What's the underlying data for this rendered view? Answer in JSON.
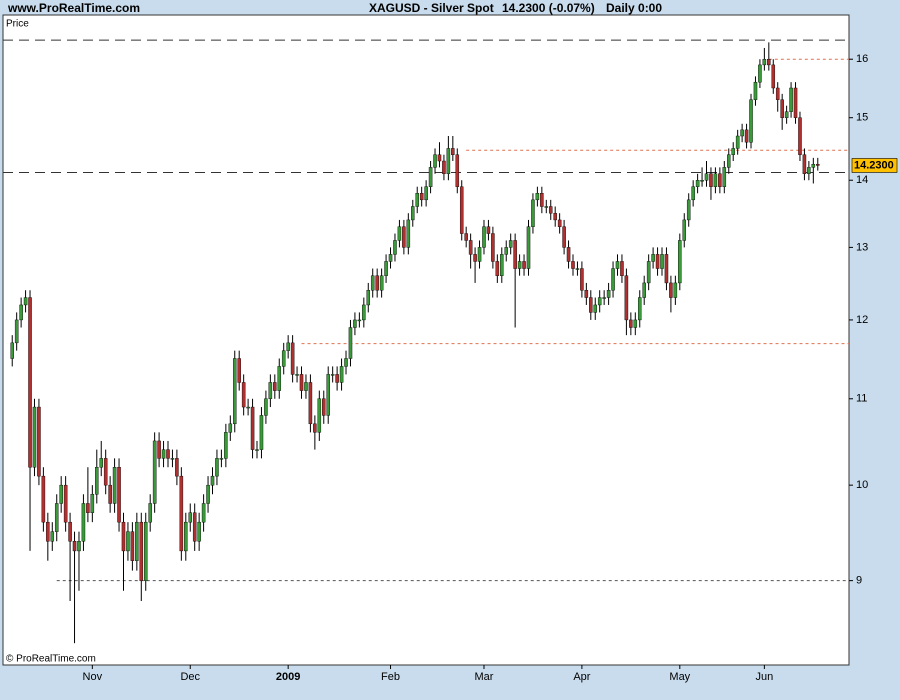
{
  "header": {
    "site": "www.ProRealTime.com",
    "instrument": "XAGUSD - Silver Spot",
    "quote": "14.2300 (-0.07%)",
    "period": "Daily 0:00"
  },
  "footer": {
    "copyright": "© ProRealTime.com"
  },
  "chart_data": {
    "type": "candlestick",
    "y_label": "Price",
    "log_scale": true,
    "up_color": "#3a9a3a",
    "down_color": "#b03030",
    "wick_color": "#000000",
    "xlim": [
      -0.5,
      181.5
    ],
    "xticks": [
      {
        "value": 18,
        "label": "Nov"
      },
      {
        "value": 40,
        "label": "Dec"
      },
      {
        "value": 62,
        "label": "2009"
      },
      {
        "value": 85,
        "label": "Feb"
      },
      {
        "value": 106,
        "label": "Mar"
      },
      {
        "value": 128,
        "label": "Apr"
      },
      {
        "value": 150,
        "label": "May"
      },
      {
        "value": 169,
        "label": "Jun"
      }
    ],
    "ylim": [
      8.2,
      16.8
    ],
    "yticks": [
      9,
      10,
      11,
      12,
      13,
      14,
      15,
      16
    ],
    "last_price": {
      "value": 14.23,
      "label": "14.2300",
      "color": "#ffc000"
    },
    "hlines": [
      {
        "value": 16.34,
        "color": "#333333",
        "dash": "10,6"
      },
      {
        "value": 14.12,
        "color": "#333333",
        "dash": "10,6"
      },
      {
        "value": 16.0,
        "color": "#e07050",
        "dash": "3,3",
        "start": 170
      },
      {
        "value": 14.47,
        "color": "#e07050",
        "dash": "3,3",
        "start": 102
      },
      {
        "value": 11.69,
        "color": "#e07050",
        "dash": "3,3",
        "start": 65
      },
      {
        "value": 9.0,
        "color": "#555555",
        "dash": "3,3",
        "start": 10
      }
    ],
    "open": [
      11.5,
      11.7,
      12.0,
      12.2,
      12.3,
      10.2,
      10.9,
      10.1,
      9.6,
      9.4,
      9.5,
      9.8,
      10.0,
      9.6,
      9.4,
      9.3,
      9.4,
      9.8,
      9.7,
      9.9,
      10.2,
      10.3,
      10.0,
      9.8,
      10.2,
      9.6,
      9.3,
      9.5,
      9.2,
      9.6,
      9.0,
      9.6,
      9.8,
      10.5,
      10.3,
      10.4,
      10.3,
      10.3,
      10.1,
      9.3,
      9.6,
      9.7,
      9.4,
      9.6,
      9.8,
      10.0,
      10.1,
      10.3,
      10.3,
      10.6,
      10.7,
      11.5,
      11.2,
      10.9,
      10.9,
      10.4,
      10.4,
      10.8,
      11.0,
      11.2,
      11.1,
      11.4,
      11.6,
      11.7,
      11.3,
      11.3,
      11.1,
      11.2,
      10.7,
      10.6,
      11.0,
      10.8,
      11.3,
      11.3,
      11.2,
      11.4,
      11.5,
      11.9,
      12.0,
      12.0,
      12.2,
      12.4,
      12.6,
      12.4,
      12.6,
      12.8,
      12.9,
      13.1,
      13.3,
      13.0,
      13.4,
      13.6,
      13.8,
      13.7,
      13.9,
      14.2,
      14.4,
      14.3,
      14.1,
      14.5,
      14.4,
      13.9,
      13.2,
      13.1,
      12.9,
      12.8,
      13.0,
      13.3,
      13.2,
      12.8,
      12.6,
      12.9,
      13.0,
      13.1,
      12.7,
      12.8,
      12.7,
      13.3,
      13.7,
      13.8,
      13.6,
      13.6,
      13.5,
      13.4,
      13.3,
      13.0,
      12.8,
      12.7,
      12.7,
      12.4,
      12.3,
      12.1,
      12.2,
      12.3,
      12.3,
      12.4,
      12.7,
      12.8,
      12.6,
      12.0,
      11.9,
      12.0,
      12.3,
      12.5,
      12.8,
      12.9,
      12.7,
      12.9,
      12.5,
      12.3,
      12.5,
      13.1,
      13.4,
      13.7,
      13.9,
      14.0,
      14.0,
      14.1,
      13.9,
      14.1,
      13.9,
      14.2,
      14.4,
      14.5,
      14.7,
      14.8,
      14.6,
      15.3,
      15.6,
      15.9,
      16.0,
      15.9,
      15.5,
      15.3,
      15.0,
      15.1,
      15.5,
      15.0,
      14.4,
      14.1,
      14.2,
      14.25
    ],
    "high": [
      11.8,
      12.1,
      12.3,
      12.4,
      12.4,
      11.0,
      11.0,
      10.2,
      9.7,
      9.6,
      9.9,
      10.1,
      10.1,
      9.7,
      9.5,
      9.5,
      9.9,
      10.2,
      10.0,
      10.4,
      10.5,
      10.4,
      10.1,
      10.3,
      10.3,
      9.7,
      9.6,
      9.6,
      9.7,
      9.7,
      9.7,
      9.9,
      10.6,
      10.6,
      10.5,
      10.5,
      10.4,
      10.4,
      10.2,
      9.7,
      9.8,
      9.8,
      9.7,
      9.9,
      10.1,
      10.2,
      10.4,
      10.4,
      10.7,
      10.8,
      11.6,
      11.6,
      11.3,
      11.0,
      11.0,
      10.5,
      10.9,
      11.1,
      11.3,
      11.3,
      11.5,
      11.7,
      11.8,
      11.8,
      11.4,
      11.4,
      11.3,
      11.3,
      10.8,
      11.1,
      11.1,
      11.4,
      11.4,
      11.4,
      11.5,
      11.6,
      12.0,
      12.1,
      12.1,
      12.3,
      12.5,
      12.7,
      12.7,
      12.7,
      12.9,
      13.0,
      13.2,
      13.4,
      13.4,
      13.5,
      13.7,
      13.9,
      13.9,
      14.0,
      14.3,
      14.5,
      14.6,
      14.4,
      14.7,
      14.7,
      14.5,
      14.0,
      13.3,
      13.2,
      13.0,
      13.1,
      13.4,
      13.4,
      13.3,
      12.9,
      13.0,
      13.1,
      13.2,
      13.2,
      12.9,
      12.9,
      13.4,
      13.8,
      13.9,
      13.9,
      13.7,
      13.7,
      13.6,
      13.5,
      13.4,
      13.1,
      12.9,
      12.8,
      12.8,
      12.5,
      12.4,
      12.3,
      12.4,
      12.4,
      12.5,
      12.8,
      12.9,
      12.9,
      12.7,
      12.1,
      12.1,
      12.4,
      12.6,
      12.9,
      13.0,
      13.0,
      13.0,
      13.0,
      12.6,
      12.6,
      13.2,
      13.5,
      13.8,
      14.0,
      14.1,
      14.2,
      14.3,
      14.2,
      14.2,
      14.2,
      14.3,
      14.5,
      14.6,
      14.8,
      14.9,
      14.9,
      15.4,
      15.7,
      16.0,
      16.2,
      16.3,
      16.0,
      15.6,
      15.4,
      15.2,
      15.6,
      15.6,
      15.1,
      14.5,
      14.3,
      14.35,
      14.35
    ],
    "low": [
      11.4,
      11.6,
      11.9,
      12.1,
      9.3,
      10.1,
      10.0,
      9.5,
      9.2,
      9.3,
      9.4,
      9.7,
      9.5,
      8.8,
      8.4,
      8.9,
      9.3,
      9.6,
      9.6,
      9.8,
      10.1,
      9.9,
      9.7,
      9.7,
      9.5,
      8.9,
      9.2,
      9.1,
      9.1,
      8.8,
      8.9,
      9.5,
      9.7,
      10.2,
      10.2,
      10.2,
      10.2,
      10.0,
      9.2,
      9.2,
      9.5,
      9.3,
      9.3,
      9.5,
      9.7,
      9.9,
      10.0,
      10.2,
      10.2,
      10.5,
      10.6,
      11.1,
      10.8,
      10.8,
      10.3,
      10.3,
      10.3,
      10.7,
      10.9,
      11.0,
      11.0,
      11.3,
      11.5,
      11.2,
      11.2,
      11.0,
      11.0,
      10.6,
      10.4,
      10.5,
      10.7,
      10.7,
      11.2,
      11.1,
      11.1,
      11.3,
      11.4,
      11.8,
      11.9,
      11.9,
      12.1,
      12.3,
      12.3,
      12.3,
      12.5,
      12.7,
      12.8,
      13.0,
      12.9,
      12.9,
      13.3,
      13.5,
      13.6,
      13.6,
      13.8,
      14.1,
      14.2,
      14.0,
      14.0,
      14.3,
      13.8,
      13.1,
      13.0,
      12.7,
      12.5,
      12.7,
      12.9,
      13.1,
      12.7,
      12.5,
      12.5,
      12.8,
      12.9,
      11.9,
      12.6,
      12.6,
      12.6,
      13.2,
      13.6,
      13.5,
      13.5,
      13.4,
      13.3,
      13.2,
      12.9,
      12.7,
      12.6,
      12.6,
      12.3,
      12.2,
      12.0,
      12.0,
      12.1,
      12.2,
      12.2,
      12.3,
      12.6,
      12.5,
      11.8,
      11.8,
      11.8,
      11.9,
      12.2,
      12.4,
      12.7,
      12.6,
      12.6,
      12.4,
      12.1,
      12.2,
      12.4,
      13.0,
      13.3,
      13.6,
      13.8,
      13.9,
      13.9,
      13.7,
      13.8,
      13.8,
      13.8,
      14.1,
      14.3,
      14.4,
      14.6,
      14.5,
      14.5,
      15.2,
      15.5,
      15.8,
      15.8,
      15.4,
      15.1,
      14.8,
      14.9,
      15.0,
      14.9,
      14.3,
      14.0,
      14.0,
      13.95,
      14.15
    ],
    "close": [
      11.7,
      12.0,
      12.2,
      12.3,
      10.2,
      10.9,
      10.1,
      9.6,
      9.4,
      9.5,
      9.8,
      10.0,
      9.6,
      9.4,
      9.3,
      9.4,
      9.8,
      9.7,
      9.9,
      10.2,
      10.3,
      10.0,
      9.8,
      10.2,
      9.6,
      9.3,
      9.5,
      9.2,
      9.6,
      9.0,
      9.6,
      9.8,
      10.5,
      10.3,
      10.4,
      10.3,
      10.3,
      10.1,
      9.3,
      9.6,
      9.7,
      9.4,
      9.6,
      9.8,
      10.0,
      10.1,
      10.3,
      10.3,
      10.6,
      10.7,
      11.5,
      11.2,
      10.9,
      10.9,
      10.4,
      10.4,
      10.8,
      11.0,
      11.2,
      11.1,
      11.4,
      11.6,
      11.7,
      11.3,
      11.3,
      11.1,
      11.2,
      10.7,
      10.6,
      11.0,
      10.8,
      11.3,
      11.3,
      11.2,
      11.4,
      11.5,
      11.9,
      12.0,
      12.0,
      12.2,
      12.4,
      12.6,
      12.4,
      12.6,
      12.8,
      12.9,
      13.1,
      13.3,
      13.0,
      13.4,
      13.6,
      13.8,
      13.7,
      13.9,
      14.2,
      14.4,
      14.3,
      14.1,
      14.5,
      14.4,
      13.9,
      13.2,
      13.1,
      12.9,
      12.8,
      13.0,
      13.3,
      13.2,
      12.8,
      12.6,
      12.9,
      13.0,
      13.1,
      12.7,
      12.8,
      12.7,
      13.3,
      13.7,
      13.8,
      13.6,
      13.6,
      13.5,
      13.4,
      13.3,
      13.0,
      12.8,
      12.7,
      12.7,
      12.4,
      12.3,
      12.1,
      12.2,
      12.3,
      12.3,
      12.4,
      12.7,
      12.8,
      12.6,
      12.0,
      11.9,
      12.0,
      12.3,
      12.5,
      12.8,
      12.9,
      12.7,
      12.9,
      12.5,
      12.3,
      12.5,
      13.1,
      13.4,
      13.7,
      13.9,
      14.0,
      14.0,
      14.1,
      13.9,
      14.1,
      13.9,
      14.2,
      14.4,
      14.5,
      14.7,
      14.8,
      14.6,
      15.3,
      15.6,
      15.9,
      16.0,
      15.9,
      15.5,
      15.3,
      15.0,
      15.1,
      15.5,
      15.0,
      14.4,
      14.1,
      14.2,
      14.25,
      14.23
    ]
  }
}
